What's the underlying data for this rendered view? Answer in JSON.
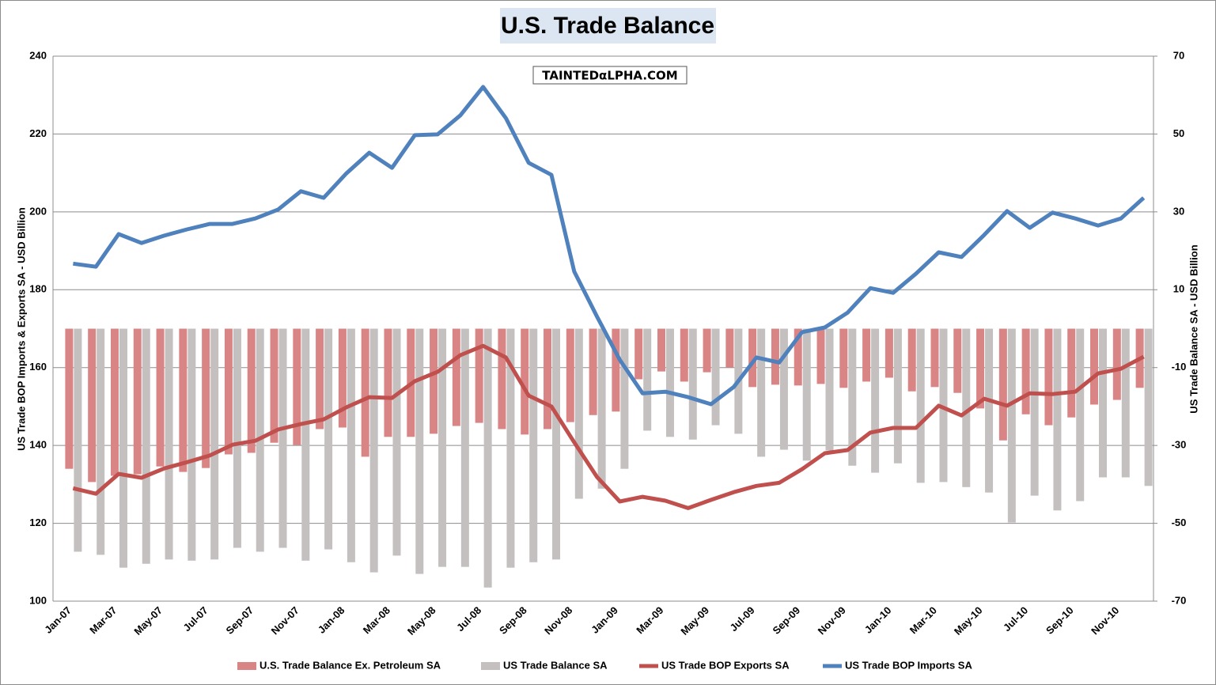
{
  "chart_data": {
    "type": "bar",
    "title": "U.S. Trade Balance",
    "watermark": "TAINTEDαLPHA.COM",
    "y_label": "US Trade BOP Imports & Exports SA - USD Billion",
    "y2_label": "US Trade Balance SA - USD Billion",
    "categories": [
      "Jan-07",
      null,
      "Mar-07",
      null,
      "May-07",
      null,
      "Jul-07",
      null,
      "Sep-07",
      null,
      "Nov-07",
      null,
      "Jan-08",
      null,
      "Mar-08",
      null,
      "May-08",
      null,
      "Jul-08",
      null,
      "Sep-08",
      null,
      "Nov-08",
      null,
      "Jan-09",
      null,
      "Mar-09",
      null,
      "May-09",
      null,
      "Jul-09",
      null,
      "Sep-09",
      null,
      "Nov-09",
      null,
      "Jan-10",
      null,
      "Mar-10",
      null,
      "May-10",
      null,
      "Jul-10",
      null,
      "Sep-10",
      null,
      "Nov-10",
      null
    ],
    "ylim": [
      100,
      240
    ],
    "yticks": [
      100,
      120,
      140,
      160,
      180,
      200,
      220,
      240
    ],
    "y2lim": [
      -70,
      70
    ],
    "y2ticks": [
      -70,
      -50,
      -30,
      -10,
      10,
      30,
      50,
      70
    ],
    "grid": true,
    "legend": "bottom",
    "series": [
      {
        "name": "U.S. Trade Balance Ex. Petroleum SA",
        "type": "bar",
        "axis": "y2",
        "color": "#d98585",
        "values": [
          -36,
          -39.4,
          -37.8,
          -37.4,
          -35.4,
          -36.8,
          -35.8,
          -32.3,
          -31.9,
          -29.3,
          -29.9,
          -25.8,
          -25.4,
          -32.9,
          -27.8,
          -27.8,
          -27,
          -25,
          -24.2,
          -25.8,
          -27.2,
          -25.8,
          -24,
          -22.2,
          -21.3,
          -13,
          -11,
          -13.6,
          -11.2,
          -10,
          -15,
          -14.4,
          -14.6,
          -14.2,
          -15.2,
          -13.6,
          -12.6,
          -16.1,
          -15,
          -16.5,
          -20.5,
          -28.7,
          -22,
          -24.8,
          -22.8,
          -19.5,
          -18.3,
          -15.2
        ]
      },
      {
        "name": "US Trade Balance SA",
        "type": "bar",
        "axis": "y2",
        "color": "#c4c0c0",
        "values": [
          -57.3,
          -58.1,
          -61.4,
          -60.4,
          -59.3,
          -59.6,
          -59.3,
          -56.3,
          -57.3,
          -56.3,
          -59.6,
          -56.7,
          -60,
          -62.6,
          -58.3,
          -63,
          -61.2,
          -61.2,
          -66.5,
          -61.4,
          -60,
          -59.3,
          -43.7,
          -41.1,
          -36,
          -26.2,
          -27.8,
          -28.5,
          -24.8,
          -27,
          -32.9,
          -31.1,
          -33.9,
          -31.3,
          -35.2,
          -37,
          -34.6,
          -39.6,
          -39.4,
          -40.7,
          -42.1,
          -49.8,
          -42.9,
          -46.7,
          -44.3,
          -38.2,
          -38.2,
          -40.4
        ]
      },
      {
        "name": "US Trade BOP Exports SA",
        "type": "line",
        "color": "#c0504d",
        "values": [
          129,
          127.6,
          132.7,
          131.7,
          134.1,
          135.7,
          137.4,
          140.2,
          141.2,
          144.1,
          145.5,
          146.7,
          149.8,
          152.4,
          152.2,
          156.5,
          158.9,
          163.2,
          165.6,
          162.6,
          152.8,
          150,
          140.8,
          131.9,
          125.6,
          126.8,
          125.8,
          123.9,
          126,
          128,
          129.6,
          130.4,
          133.9,
          138,
          138.8,
          143.3,
          144.5,
          144.5,
          150.2,
          147.7,
          152,
          150.2,
          153.4,
          153.2,
          153.8,
          158.5,
          159.7,
          162.8
        ]
      },
      {
        "name": "US Trade BOP Imports SA",
        "type": "line",
        "color": "#4f81bd",
        "values": [
          186.7,
          185.9,
          194.3,
          192,
          193.9,
          195.5,
          196.9,
          196.9,
          198.3,
          200.6,
          205.3,
          203.6,
          209.9,
          215.2,
          211.3,
          219.7,
          219.9,
          224.8,
          232.1,
          224.1,
          212.6,
          209.5,
          184.7,
          173.1,
          162,
          153.4,
          153.8,
          152.4,
          150.6,
          155,
          162.6,
          161.3,
          169.1,
          170.3,
          174.1,
          180.4,
          179.2,
          184.1,
          189.6,
          188.4,
          194.1,
          200.2,
          195.9,
          199.8,
          198.3,
          196.5,
          198.3,
          203.6
        ]
      }
    ]
  }
}
